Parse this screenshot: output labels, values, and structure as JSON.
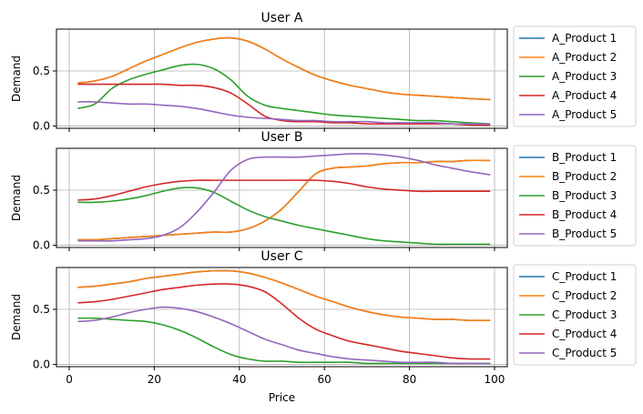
{
  "chart_data": [
    {
      "type": "line",
      "title": "User A",
      "xlabel": "",
      "ylabel": "Demand",
      "xlim": [
        -3,
        103
      ],
      "ylim": [
        -0.02,
        0.88
      ],
      "xticks": [
        0,
        20,
        40,
        60,
        80,
        100
      ],
      "yticks": [
        0.0,
        0.5
      ],
      "ytick_labels": [
        "0.0",
        "0.5"
      ],
      "grid": true,
      "legend": "outside-right",
      "x": [
        2,
        6,
        10,
        14,
        18,
        22,
        26,
        30,
        34,
        38,
        42,
        46,
        50,
        54,
        58,
        62,
        66,
        70,
        74,
        78,
        82,
        86,
        90,
        94,
        99
      ],
      "series": [
        {
          "name": "A_Product 1",
          "color": "#1f77b4",
          "values": [
            0.39,
            0.41,
            0.45,
            0.52,
            0.59,
            0.65,
            0.71,
            0.76,
            0.79,
            0.8,
            0.77,
            0.7,
            0.61,
            0.53,
            0.46,
            0.41,
            0.37,
            0.34,
            0.31,
            0.29,
            0.28,
            0.27,
            0.26,
            0.25,
            0.24
          ]
        },
        {
          "name": "A_Product 2",
          "color": "#ff7f0e",
          "values": [
            0.39,
            0.41,
            0.45,
            0.52,
            0.59,
            0.65,
            0.71,
            0.76,
            0.79,
            0.8,
            0.77,
            0.7,
            0.61,
            0.53,
            0.46,
            0.41,
            0.37,
            0.34,
            0.31,
            0.29,
            0.28,
            0.27,
            0.26,
            0.25,
            0.24
          ]
        },
        {
          "name": "A_Product 3",
          "color": "#2ca02c",
          "values": [
            0.16,
            0.2,
            0.34,
            0.42,
            0.47,
            0.51,
            0.55,
            0.56,
            0.52,
            0.42,
            0.27,
            0.19,
            0.16,
            0.14,
            0.12,
            0.1,
            0.09,
            0.08,
            0.07,
            0.06,
            0.05,
            0.05,
            0.04,
            0.03,
            0.02
          ]
        },
        {
          "name": "A_Product 4",
          "color": "#d62728",
          "values": [
            0.38,
            0.38,
            0.38,
            0.38,
            0.38,
            0.38,
            0.37,
            0.37,
            0.35,
            0.3,
            0.2,
            0.09,
            0.05,
            0.04,
            0.04,
            0.03,
            0.03,
            0.02,
            0.02,
            0.02,
            0.02,
            0.02,
            0.02,
            0.01,
            0.01
          ]
        },
        {
          "name": "A_Product 5",
          "color": "#9467bd",
          "values": [
            0.22,
            0.22,
            0.21,
            0.2,
            0.2,
            0.19,
            0.18,
            0.16,
            0.13,
            0.1,
            0.08,
            0.07,
            0.06,
            0.05,
            0.05,
            0.04,
            0.04,
            0.04,
            0.03,
            0.03,
            0.03,
            0.03,
            0.02,
            0.02,
            0.02
          ]
        }
      ]
    },
    {
      "type": "line",
      "title": "User B",
      "xlabel": "",
      "ylabel": "Demand",
      "xlim": [
        -3,
        103
      ],
      "ylim": [
        -0.02,
        0.88
      ],
      "xticks": [
        0,
        20,
        40,
        60,
        80,
        100
      ],
      "yticks": [
        0.0,
        0.5
      ],
      "ytick_labels": [
        "0.0",
        "0.5"
      ],
      "grid": true,
      "legend": "outside-right",
      "x": [
        2,
        6,
        10,
        14,
        18,
        22,
        26,
        30,
        34,
        38,
        42,
        46,
        50,
        54,
        58,
        62,
        66,
        70,
        74,
        78,
        82,
        86,
        90,
        94,
        99
      ],
      "series": [
        {
          "name": "B_Product 1",
          "color": "#1f77b4",
          "values": [
            0.05,
            0.05,
            0.06,
            0.07,
            0.08,
            0.09,
            0.1,
            0.11,
            0.12,
            0.12,
            0.15,
            0.22,
            0.33,
            0.49,
            0.65,
            0.7,
            0.71,
            0.72,
            0.74,
            0.75,
            0.75,
            0.76,
            0.76,
            0.77,
            0.77
          ]
        },
        {
          "name": "B_Product 2",
          "color": "#ff7f0e",
          "values": [
            0.05,
            0.05,
            0.06,
            0.07,
            0.08,
            0.09,
            0.1,
            0.11,
            0.12,
            0.12,
            0.15,
            0.22,
            0.33,
            0.49,
            0.65,
            0.7,
            0.71,
            0.72,
            0.74,
            0.75,
            0.75,
            0.76,
            0.76,
            0.77,
            0.77
          ]
        },
        {
          "name": "B_Product 3",
          "color": "#2ca02c",
          "values": [
            0.39,
            0.39,
            0.4,
            0.42,
            0.45,
            0.49,
            0.52,
            0.52,
            0.48,
            0.4,
            0.32,
            0.26,
            0.22,
            0.18,
            0.15,
            0.12,
            0.09,
            0.06,
            0.04,
            0.03,
            0.02,
            0.01,
            0.01,
            0.01,
            0.01
          ]
        },
        {
          "name": "B_Product 4",
          "color": "#d62728",
          "values": [
            0.41,
            0.42,
            0.45,
            0.49,
            0.53,
            0.56,
            0.58,
            0.59,
            0.59,
            0.59,
            0.59,
            0.59,
            0.59,
            0.59,
            0.59,
            0.58,
            0.56,
            0.53,
            0.51,
            0.5,
            0.49,
            0.49,
            0.49,
            0.49,
            0.49
          ]
        },
        {
          "name": "B_Product 5",
          "color": "#9467bd",
          "values": [
            0.04,
            0.04,
            0.04,
            0.05,
            0.06,
            0.09,
            0.16,
            0.3,
            0.48,
            0.68,
            0.78,
            0.8,
            0.8,
            0.8,
            0.81,
            0.82,
            0.83,
            0.83,
            0.82,
            0.8,
            0.77,
            0.73,
            0.7,
            0.67,
            0.64
          ]
        }
      ]
    },
    {
      "type": "line",
      "title": "User C",
      "xlabel": "Price",
      "ylabel": "Demand",
      "xlim": [
        -3,
        103
      ],
      "ylim": [
        -0.02,
        0.88
      ],
      "xticks": [
        0,
        20,
        40,
        60,
        80,
        100
      ],
      "xtick_labels": [
        "0",
        "20",
        "40",
        "60",
        "80",
        "100"
      ],
      "yticks": [
        0.0,
        0.5
      ],
      "ytick_labels": [
        "0.0",
        "0.5"
      ],
      "grid": true,
      "legend": "outside-right",
      "x": [
        2,
        6,
        10,
        14,
        18,
        22,
        26,
        30,
        34,
        38,
        42,
        46,
        50,
        54,
        58,
        62,
        66,
        70,
        74,
        78,
        82,
        86,
        90,
        94,
        99
      ],
      "series": [
        {
          "name": "C_Product 1",
          "color": "#1f77b4",
          "values": [
            0.7,
            0.71,
            0.73,
            0.75,
            0.78,
            0.8,
            0.82,
            0.84,
            0.85,
            0.85,
            0.83,
            0.79,
            0.74,
            0.68,
            0.62,
            0.57,
            0.52,
            0.48,
            0.45,
            0.43,
            0.42,
            0.41,
            0.41,
            0.4,
            0.4
          ]
        },
        {
          "name": "C_Product 2",
          "color": "#ff7f0e",
          "values": [
            0.7,
            0.71,
            0.73,
            0.75,
            0.78,
            0.8,
            0.82,
            0.84,
            0.85,
            0.85,
            0.83,
            0.79,
            0.74,
            0.68,
            0.62,
            0.57,
            0.52,
            0.48,
            0.45,
            0.43,
            0.42,
            0.41,
            0.41,
            0.4,
            0.4
          ]
        },
        {
          "name": "C_Product 3",
          "color": "#2ca02c",
          "values": [
            0.42,
            0.42,
            0.41,
            0.4,
            0.39,
            0.36,
            0.31,
            0.24,
            0.16,
            0.09,
            0.05,
            0.03,
            0.03,
            0.02,
            0.02,
            0.02,
            0.02,
            0.01,
            0.01,
            0.01,
            0.01,
            0.01,
            0.01,
            0.01,
            0.01
          ]
        },
        {
          "name": "C_Product 4",
          "color": "#d62728",
          "values": [
            0.56,
            0.57,
            0.59,
            0.62,
            0.65,
            0.68,
            0.7,
            0.72,
            0.73,
            0.73,
            0.71,
            0.66,
            0.55,
            0.42,
            0.32,
            0.26,
            0.21,
            0.18,
            0.15,
            0.12,
            0.1,
            0.08,
            0.06,
            0.05,
            0.05
          ]
        },
        {
          "name": "C_Product 5",
          "color": "#9467bd",
          "values": [
            0.39,
            0.4,
            0.43,
            0.47,
            0.5,
            0.52,
            0.51,
            0.48,
            0.43,
            0.37,
            0.3,
            0.23,
            0.18,
            0.13,
            0.1,
            0.07,
            0.05,
            0.04,
            0.03,
            0.02,
            0.02,
            0.02,
            0.01,
            0.01,
            0.01
          ]
        }
      ]
    }
  ]
}
